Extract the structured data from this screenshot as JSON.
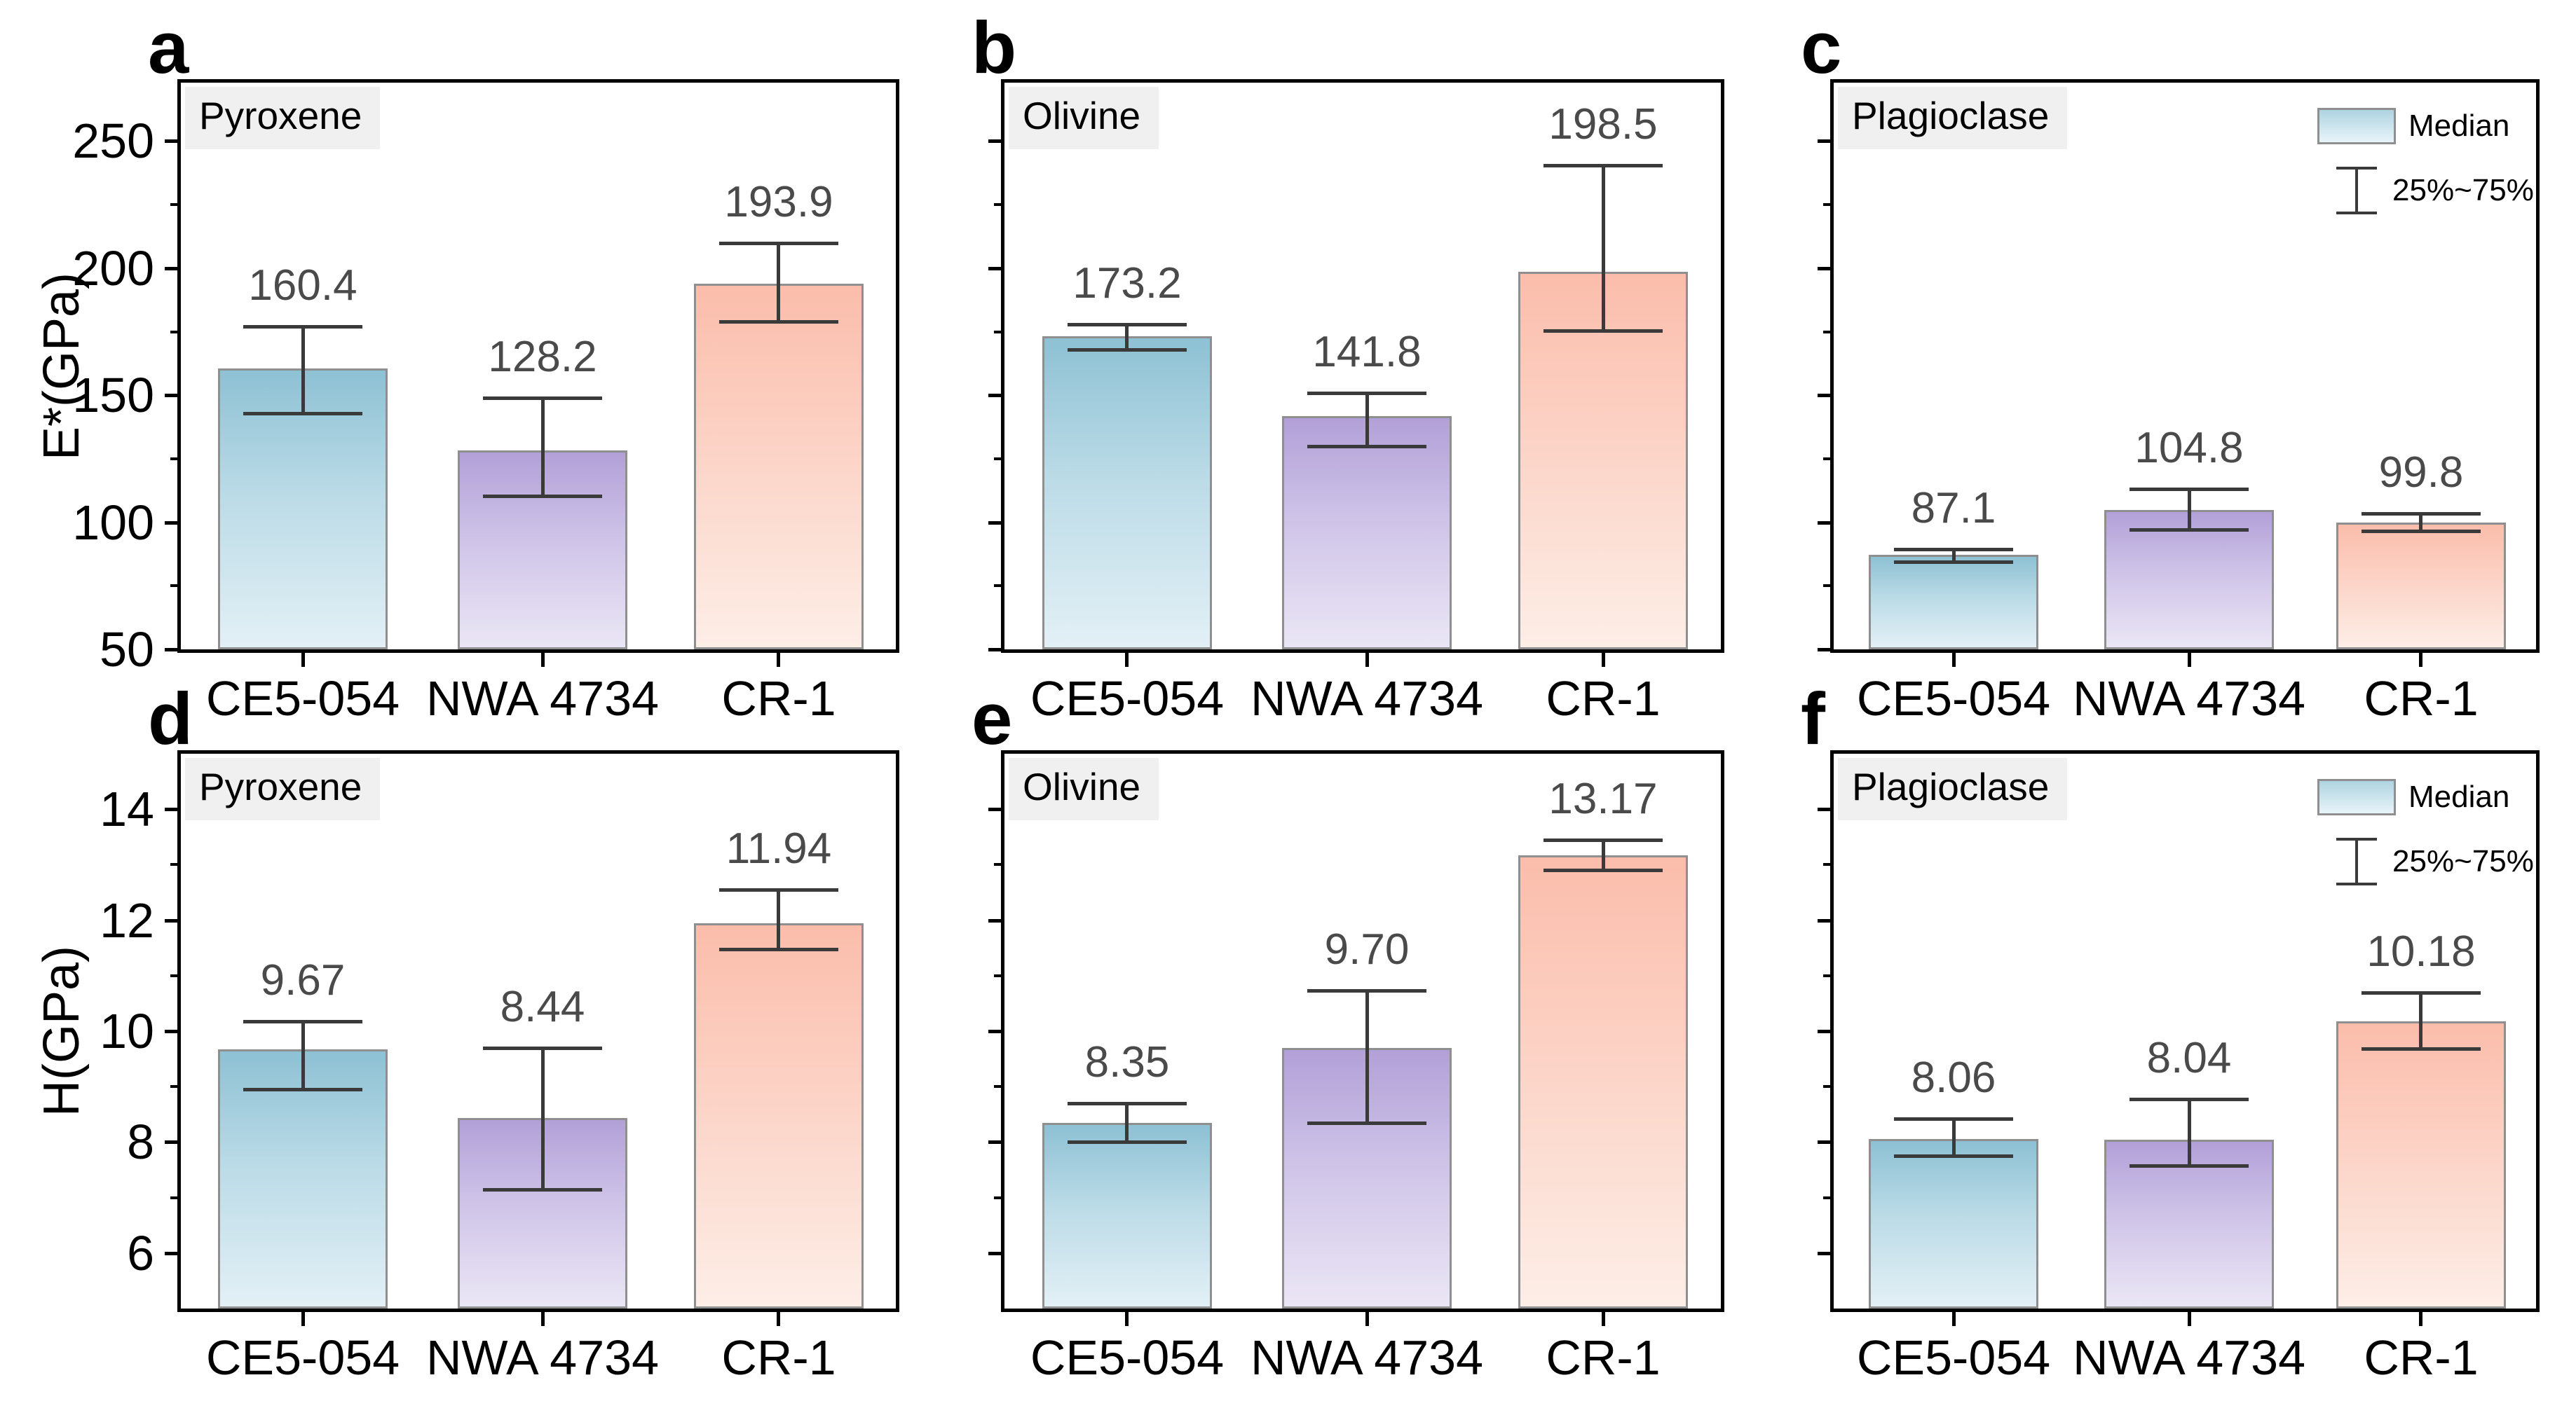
{
  "legend": {
    "median_label": "Median",
    "range_label": "25%~75%"
  },
  "colors": {
    "background": "#ffffff",
    "axis": "#000000",
    "bar_border": "#8f8f8f",
    "error_bar": "#3a3a3a",
    "value_label_text": "#4a4a4a",
    "title_chip_bg": "#f0f0f0",
    "series": [
      {
        "name": "CE5-054",
        "top": "#8dc1d4",
        "bottom": "#e3f0f6"
      },
      {
        "name": "NWA 4734",
        "top": "#b2a0d8",
        "bottom": "#ebe6f5"
      },
      {
        "name": "CR-1",
        "top": "#fbbdab",
        "bottom": "#fdeee7"
      }
    ]
  },
  "chart_data": [
    {
      "type": "bar",
      "panel_letter": "a",
      "title": "Pyroxene",
      "ylabel": "E*(GPa)",
      "show_ylabel": true,
      "show_y_tick_labels": true,
      "legend": false,
      "ylim": [
        50,
        273
      ],
      "yticks_major": [
        250,
        200,
        150,
        100,
        50
      ],
      "yticks_minor": [
        225,
        175,
        125,
        75
      ],
      "categories": [
        "CE5-054",
        "NWA 4734",
        "CR-1"
      ],
      "values": [
        160.4,
        128.2,
        193.9
      ],
      "value_labels": [
        "160.4",
        "128.2",
        "193.9"
      ],
      "q25": [
        143,
        110.5,
        179
      ],
      "q75": [
        177,
        149,
        210
      ]
    },
    {
      "type": "bar",
      "panel_letter": "b",
      "title": "Olivine",
      "ylabel": "E*(GPa)",
      "show_ylabel": false,
      "show_y_tick_labels": false,
      "legend": false,
      "ylim": [
        50,
        273
      ],
      "yticks_major": [
        250,
        200,
        150,
        100,
        50
      ],
      "yticks_minor": [
        225,
        175,
        125,
        75
      ],
      "categories": [
        "CE5-054",
        "NWA 4734",
        "CR-1"
      ],
      "values": [
        173.2,
        141.8,
        198.5
      ],
      "value_labels": [
        "173.2",
        "141.8",
        "198.5"
      ],
      "q25": [
        168,
        130,
        175.5
      ],
      "q75": [
        178,
        151,
        240.5
      ]
    },
    {
      "type": "bar",
      "panel_letter": "c",
      "title": "Plagioclase",
      "ylabel": "E*(GPa)",
      "show_ylabel": false,
      "show_y_tick_labels": false,
      "legend": true,
      "ylim": [
        50,
        273
      ],
      "yticks_major": [
        250,
        200,
        150,
        100,
        50
      ],
      "yticks_minor": [
        225,
        175,
        125,
        75
      ],
      "categories": [
        "CE5-054",
        "NWA 4734",
        "CR-1"
      ],
      "values": [
        87.1,
        104.8,
        99.8
      ],
      "value_labels": [
        "87.1",
        "104.8",
        "99.8"
      ],
      "q25": [
        84.5,
        97,
        96.5
      ],
      "q75": [
        89.5,
        113,
        103.5
      ]
    },
    {
      "type": "bar",
      "panel_letter": "d",
      "title": "Pyroxene",
      "ylabel": "H(GPa)",
      "show_ylabel": true,
      "show_y_tick_labels": true,
      "legend": false,
      "ylim": [
        5,
        15
      ],
      "yticks_major": [
        14,
        12,
        10,
        8,
        6
      ],
      "yticks_minor": [
        13,
        11,
        9,
        7
      ],
      "categories": [
        "CE5-054",
        "NWA 4734",
        "CR-1"
      ],
      "values": [
        9.67,
        8.44,
        11.94
      ],
      "value_labels": [
        "9.67",
        "8.44",
        "11.94"
      ],
      "q25": [
        8.95,
        7.15,
        11.48
      ],
      "q75": [
        10.18,
        9.7,
        12.55
      ]
    },
    {
      "type": "bar",
      "panel_letter": "e",
      "title": "Olivine",
      "ylabel": "H(GPa)",
      "show_ylabel": false,
      "show_y_tick_labels": false,
      "legend": false,
      "ylim": [
        5,
        15
      ],
      "yticks_major": [
        14,
        12,
        10,
        8,
        6
      ],
      "yticks_minor": [
        13,
        11,
        9,
        7
      ],
      "categories": [
        "CE5-054",
        "NWA 4734",
        "CR-1"
      ],
      "values": [
        8.35,
        9.7,
        13.17
      ],
      "value_labels": [
        "8.35",
        "9.70",
        "13.17"
      ],
      "q25": [
        8.0,
        8.35,
        12.9
      ],
      "q75": [
        8.7,
        10.73,
        13.45
      ]
    },
    {
      "type": "bar",
      "panel_letter": "f",
      "title": "Plagioclase",
      "ylabel": "H(GPa)",
      "show_ylabel": false,
      "show_y_tick_labels": false,
      "legend": true,
      "ylim": [
        5,
        15
      ],
      "yticks_major": [
        14,
        12,
        10,
        8,
        6
      ],
      "yticks_minor": [
        13,
        11,
        9,
        7
      ],
      "categories": [
        "CE5-054",
        "NWA 4734",
        "CR-1"
      ],
      "values": [
        8.06,
        8.04,
        10.18
      ],
      "value_labels": [
        "8.06",
        "8.04",
        "10.18"
      ],
      "q25": [
        7.75,
        7.57,
        9.68
      ],
      "q75": [
        8.42,
        8.77,
        10.7
      ]
    }
  ]
}
